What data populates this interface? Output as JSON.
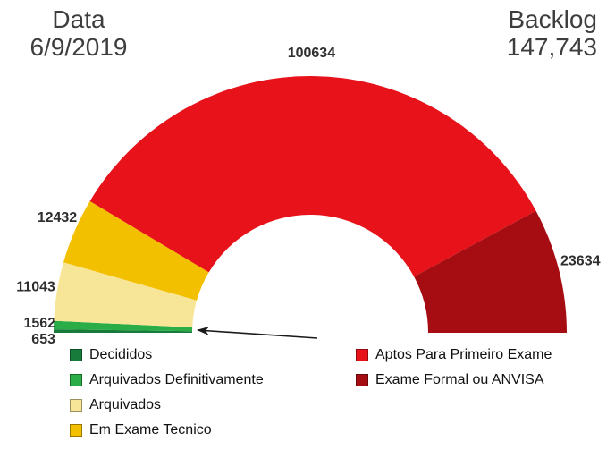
{
  "header": {
    "date_label": "Data",
    "date_value": "6/9/2019",
    "backlog_label": "Backlog",
    "backlog_value": "147,743"
  },
  "chart_data": {
    "type": "pie",
    "variant": "half-donut-gauge",
    "start_angle_deg": 180,
    "end_angle_deg": 0,
    "legend_position": "bottom-two-columns",
    "slices": [
      {
        "key": "decididos",
        "label": "Decididos",
        "value": 653,
        "value_label": "653",
        "color": "#177b3b"
      },
      {
        "key": "arquivados-definitivamente",
        "label": "Arquivados Definitivamente",
        "value": 1562,
        "value_label": "1562",
        "color": "#2aac47"
      },
      {
        "key": "arquivados",
        "label": "Arquivados",
        "value": 11043,
        "value_label": "11043",
        "color": "#f8e698"
      },
      {
        "key": "em-exame-tecnico",
        "label": "Em Exame Tecnico",
        "value": 12432,
        "value_label": "12432",
        "color": "#f3c000"
      },
      {
        "key": "aptos-para-primeiro-exame",
        "label": "Aptos Para Primeiro Exame",
        "value": 100634,
        "value_label": "100634",
        "color": "#e8121a"
      },
      {
        "key": "exame-formal-ou-anvisa",
        "label": "Exame Formal ou ANVISA",
        "value": 23634,
        "value_label": "23634",
        "color": "#a50d12"
      }
    ],
    "annotation": {
      "type": "arrow",
      "points_to": "smallest-slices"
    }
  },
  "legend": {
    "columns": [
      {
        "items": [
          {
            "key": "decididos",
            "label": "Decididos",
            "color": "#177b3b"
          },
          {
            "key": "arquivados-definitivamente",
            "label": "Arquivados Definitivamente",
            "color": "#2aac47"
          },
          {
            "key": "arquivados",
            "label": "Arquivados",
            "color": "#f8e698"
          },
          {
            "key": "em-exame-tecnico",
            "label": "Em Exame Tecnico",
            "color": "#f3c000"
          }
        ]
      },
      {
        "items": [
          {
            "key": "aptos-para-primeiro-exame",
            "label": "Aptos Para Primeiro Exame",
            "color": "#e8121a"
          },
          {
            "key": "exame-formal-ou-anvisa",
            "label": "Exame Formal ou ANVISA",
            "color": "#a50d12"
          }
        ]
      }
    ]
  }
}
